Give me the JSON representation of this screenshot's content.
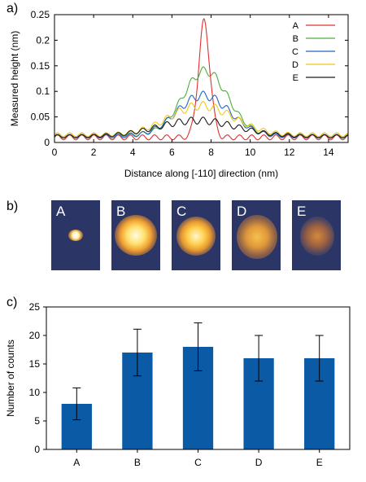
{
  "panels": {
    "a": "a)",
    "b": "b)",
    "c": "c)"
  },
  "chart_data": [
    {
      "type": "line",
      "xlabel": "Distance along [-110] direction (nm)",
      "ylabel": "Measured height (nm)",
      "xlim": [
        0,
        15
      ],
      "ylim": [
        0,
        0.25
      ],
      "xticks": [
        0,
        2,
        4,
        6,
        8,
        10,
        12,
        14
      ],
      "yticks": [
        0,
        0.05,
        0.1,
        0.15,
        0.2,
        0.25
      ],
      "ytick_labels": [
        "0",
        "0.05",
        "0.1",
        "0.15",
        "0.2",
        "0.25"
      ],
      "legend": "top-right",
      "series": [
        {
          "name": "A",
          "color": "#e03030",
          "baseline": 0.01,
          "peak": 0.232,
          "center": 7.65,
          "width": 0.42,
          "ripple": 0.008,
          "sidelobe": 0
        },
        {
          "name": "B",
          "color": "#4caf3a",
          "baseline": 0.015,
          "peak": 0.14,
          "center": 7.7,
          "width": 1.6,
          "ripple": 0.006,
          "sidelobe": 0
        },
        {
          "name": "C",
          "color": "#2166c8",
          "baseline": 0.012,
          "peak": 0.092,
          "center": 7.6,
          "width": 1.9,
          "ripple": 0.006,
          "sidelobe": 0
        },
        {
          "name": "D",
          "color": "#f2c814",
          "baseline": 0.015,
          "peak": 0.072,
          "center": 7.5,
          "width": 2.3,
          "ripple": 0.006,
          "sidelobe": 0
        },
        {
          "name": "E",
          "color": "#1a1a1a",
          "baseline": 0.012,
          "peak": 0.043,
          "center": 7.3,
          "width": 2.8,
          "ripple": 0.005,
          "sidelobe": 0
        }
      ]
    },
    {
      "type": "bar",
      "xlabel": "",
      "ylabel": "Number of counts",
      "ylim": [
        0,
        25
      ],
      "yticks": [
        0,
        5,
        10,
        15,
        20,
        25
      ],
      "categories": [
        "A",
        "B",
        "C",
        "D",
        "E"
      ],
      "values": [
        8,
        17,
        18,
        16,
        16
      ],
      "errors": [
        2.8,
        4.1,
        4.2,
        4.0,
        4.0
      ],
      "color": "#0a5aa6"
    }
  ],
  "stm_images": [
    {
      "label": "A",
      "spot": "small-bright"
    },
    {
      "label": "B",
      "spot": "large-bright"
    },
    {
      "label": "C",
      "spot": "medium-bright"
    },
    {
      "label": "D",
      "spot": "diffuse"
    },
    {
      "label": "E",
      "spot": "faint"
    }
  ]
}
